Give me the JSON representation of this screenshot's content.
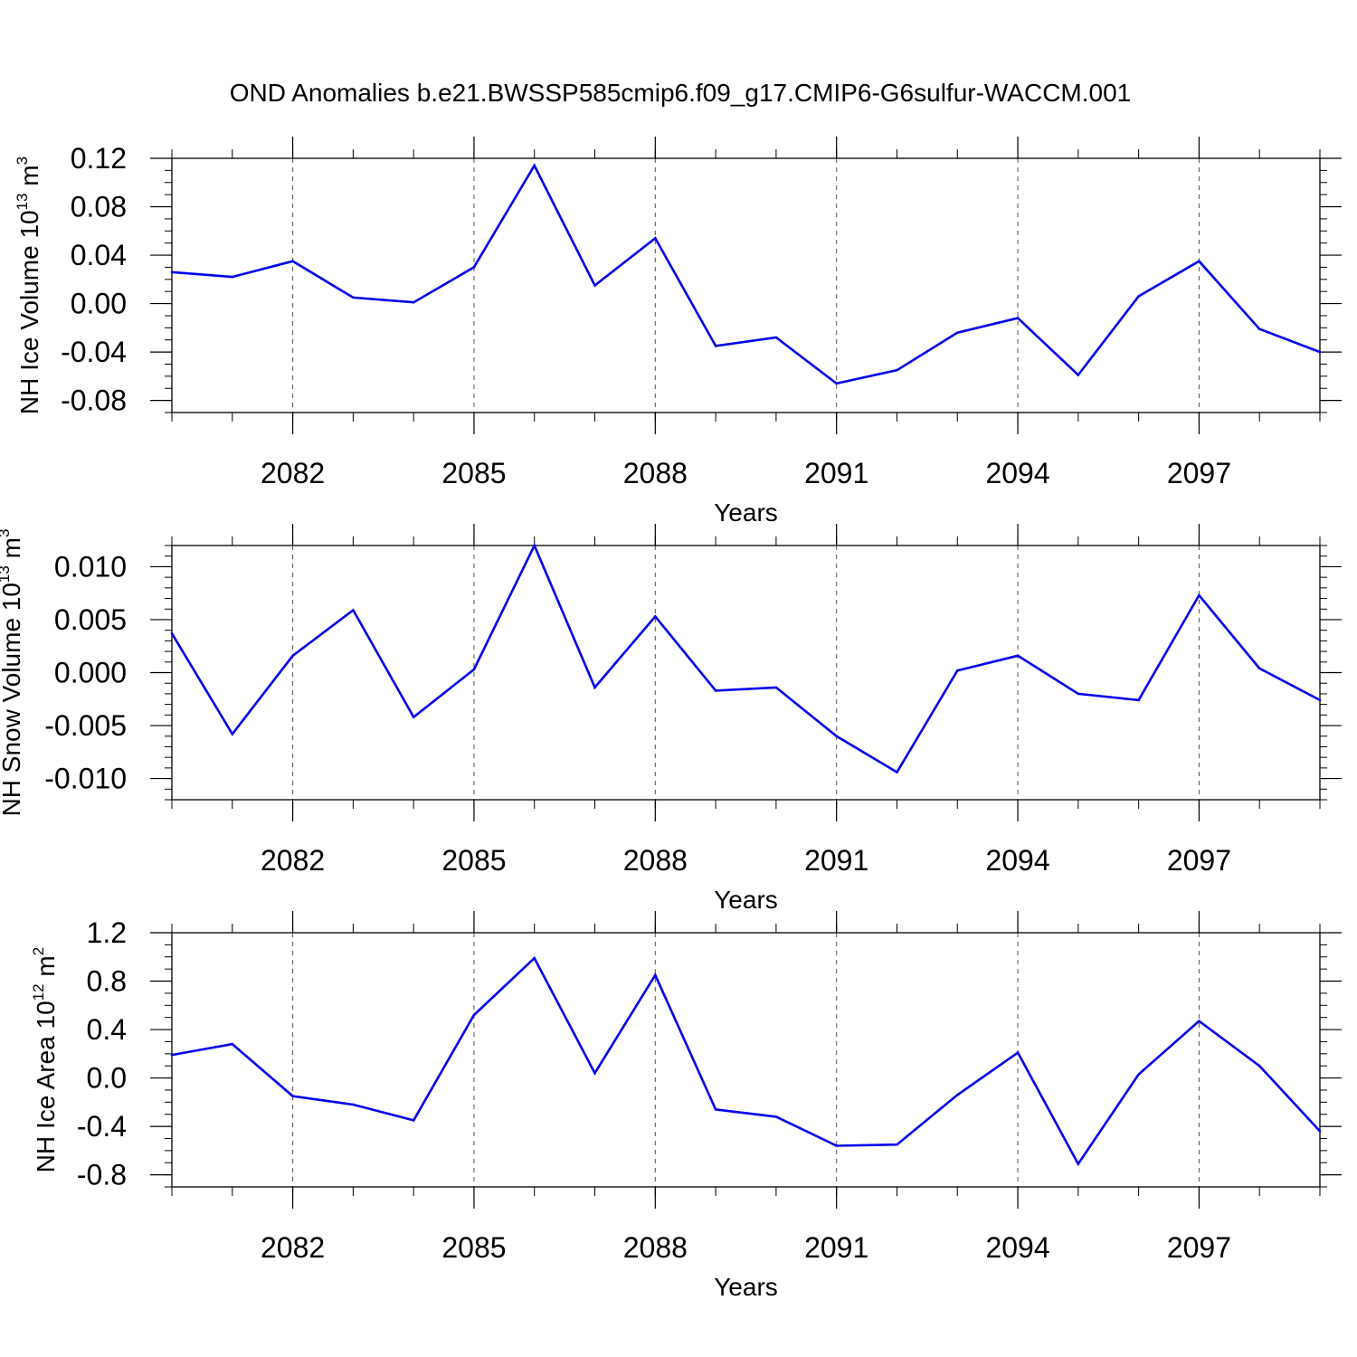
{
  "title": "OND Anomalies b.e21.BWSSP585cmip6.f09_g17.CMIP6-G6sulfur-WACCM.001",
  "chart_data": [
    {
      "type": "line",
      "ylabel": "NH Ice Volume 10",
      "ylabel_exp": "13",
      "ylabel_unit": " m",
      "ylabel_unit_exp": "3",
      "xlabel": "Years",
      "xlim": [
        2080,
        2099
      ],
      "ylim": [
        -0.09,
        0.12
      ],
      "yticks": [
        0.12,
        0.08,
        0.04,
        0.0,
        -0.04,
        -0.08
      ],
      "ytick_labels": [
        "0.12",
        "0.08",
        "0.04",
        "0.00",
        "-0.04",
        "-0.08"
      ],
      "yminor_step": 0.01,
      "xticks": [
        2082,
        2085,
        2088,
        2091,
        2094,
        2097
      ],
      "xtick_labels": [
        "2082",
        "2085",
        "2088",
        "2091",
        "2094",
        "2097"
      ],
      "color": "#0000ee",
      "x": [
        2080,
        2081,
        2082,
        2083,
        2084,
        2085,
        2086,
        2087,
        2088,
        2089,
        2090,
        2091,
        2092,
        2093,
        2094,
        2095,
        2096,
        2097,
        2098,
        2099
      ],
      "values": [
        0.026,
        0.022,
        0.035,
        0.005,
        0.001,
        0.03,
        0.114,
        0.015,
        0.054,
        -0.035,
        -0.028,
        -0.066,
        -0.055,
        -0.024,
        -0.012,
        -0.059,
        0.006,
        0.035,
        -0.021,
        -0.04
      ]
    },
    {
      "type": "line",
      "ylabel": "NH Snow Volume 10",
      "ylabel_exp": "13",
      "ylabel_unit": " m",
      "ylabel_unit_exp": "3",
      "xlabel": "Years",
      "xlim": [
        2080,
        2099
      ],
      "ylim": [
        -0.012,
        0.012
      ],
      "yticks": [
        0.01,
        0.005,
        0.0,
        -0.005,
        -0.01
      ],
      "ytick_labels": [
        "0.010",
        "0.005",
        "0.000",
        "-0.005",
        "-0.010"
      ],
      "yminor_step": 0.001,
      "xticks": [
        2082,
        2085,
        2088,
        2091,
        2094,
        2097
      ],
      "xtick_labels": [
        "2082",
        "2085",
        "2088",
        "2091",
        "2094",
        "2097"
      ],
      "color": "#0000ee",
      "x": [
        2080,
        2081,
        2082,
        2083,
        2084,
        2085,
        2086,
        2087,
        2088,
        2089,
        2090,
        2091,
        2092,
        2093,
        2094,
        2095,
        2096,
        2097,
        2098,
        2099
      ],
      "values": [
        0.0037,
        -0.0058,
        0.0016,
        0.0059,
        -0.0042,
        0.0003,
        0.012,
        -0.0014,
        0.0053,
        -0.0017,
        -0.0014,
        -0.006,
        -0.0094,
        0.0002,
        0.0016,
        -0.002,
        -0.0026,
        0.0073,
        0.0004,
        -0.0026
      ]
    },
    {
      "type": "line",
      "ylabel": "NH Ice Area 10",
      "ylabel_exp": "12",
      "ylabel_unit": " m",
      "ylabel_unit_exp": "2",
      "xlabel": "Years",
      "xlim": [
        2080,
        2099
      ],
      "ylim": [
        -0.9,
        1.2
      ],
      "yticks": [
        1.2,
        0.8,
        0.4,
        0.0,
        -0.4,
        -0.8
      ],
      "ytick_labels": [
        "1.2",
        "0.8",
        "0.4",
        "0.0",
        "-0.4",
        "-0.8"
      ],
      "yminor_step": 0.1,
      "xticks": [
        2082,
        2085,
        2088,
        2091,
        2094,
        2097
      ],
      "xtick_labels": [
        "2082",
        "2085",
        "2088",
        "2091",
        "2094",
        "2097"
      ],
      "color": "#0000ee",
      "x": [
        2080,
        2081,
        2082,
        2083,
        2084,
        2085,
        2086,
        2087,
        2088,
        2089,
        2090,
        2091,
        2092,
        2093,
        2094,
        2095,
        2096,
        2097,
        2098,
        2099
      ],
      "values": [
        0.19,
        0.28,
        -0.15,
        -0.22,
        -0.35,
        0.52,
        0.99,
        0.04,
        0.85,
        -0.26,
        -0.32,
        -0.56,
        -0.55,
        -0.14,
        0.21,
        -0.71,
        0.03,
        0.47,
        0.1,
        -0.44
      ]
    }
  ]
}
